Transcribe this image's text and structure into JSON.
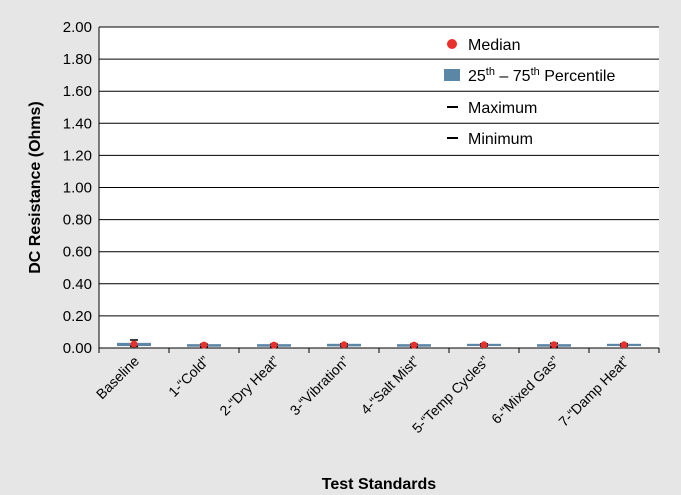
{
  "chart_data": {
    "type": "box",
    "title": "",
    "xlabel": "Test Standards",
    "ylabel": "DC Resistance (Ohms)",
    "ylim": [
      0,
      2.0
    ],
    "yticks": [
      "0.00",
      "0.20",
      "0.40",
      "0.60",
      "0.80",
      "1.00",
      "1.20",
      "1.40",
      "1.60",
      "1.80",
      "2.00"
    ],
    "grid": true,
    "legend_position": "top-right",
    "legend": {
      "median": "Median",
      "percentile_pre": "25",
      "percentile_sup1": "th",
      "percentile_mid": " – 75",
      "percentile_sup2": "th",
      "percentile_post": " Percentile",
      "maximum": "Maximum",
      "minimum": "Minimum"
    },
    "categories": [
      "Baseline",
      "1-“Cold”",
      "2-“Dry Heat”",
      "3-“Vibration”",
      "4-“Salt Mist”",
      "5-“Temp Cycles”",
      "6-“Mixed Gas”",
      "7-“Damp Heat”"
    ],
    "series": [
      {
        "name": "Median",
        "values": [
          0.025,
          0.018,
          0.018,
          0.02,
          0.018,
          0.02,
          0.02,
          0.02
        ]
      },
      {
        "name": "25th – 75th Percentile",
        "q1": [
          0.012,
          0.008,
          0.008,
          0.01,
          0.008,
          0.012,
          0.008,
          0.012
        ],
        "q3": [
          0.032,
          0.024,
          0.024,
          0.026,
          0.024,
          0.026,
          0.024,
          0.026
        ]
      },
      {
        "name": "Maximum",
        "values": [
          0.05,
          0.024,
          0.024,
          0.026,
          0.024,
          0.026,
          0.03,
          0.026
        ]
      },
      {
        "name": "Minimum",
        "values": [
          0.01,
          0.008,
          0.008,
          0.01,
          0.008,
          0.012,
          0.008,
          0.012
        ]
      }
    ],
    "colors": {
      "median": "#e8312c",
      "box": "#5b86a6",
      "whisker": "#000000",
      "grid": "#000000",
      "plot_bg": "#ffffff",
      "page_bg": "#e6e6e6"
    }
  }
}
